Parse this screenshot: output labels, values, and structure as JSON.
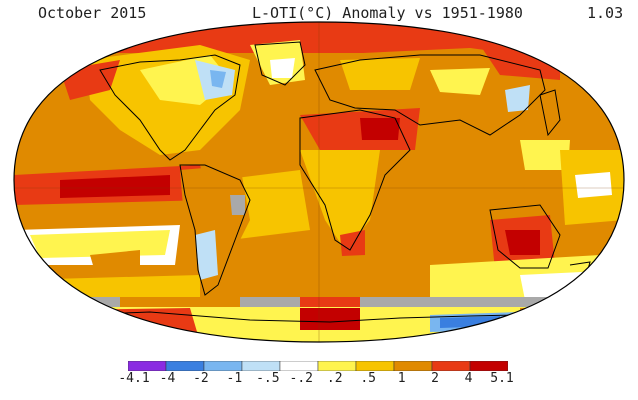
{
  "header": {
    "left": "October 2015",
    "center": "L-OTI(°C) Anomaly vs 1951-1980",
    "right": "1.03"
  },
  "colors": {
    "ocean_frame": "#ffffff",
    "no_data": "#a9a9a9",
    "coastline": "#000000",
    "bins": [
      "#8a2be2",
      "#3a7fe0",
      "#79b6f0",
      "#bfe0f6",
      "#ffffff",
      "#fff44f",
      "#f7c400",
      "#e08a00",
      "#e83a14",
      "#c30000"
    ]
  },
  "legend": {
    "ticks": [
      "-4.1",
      "-4",
      "-2",
      "-1",
      "-.5",
      "-.2",
      ".2",
      ".5",
      "1",
      "2",
      "4",
      "5.1"
    ]
  }
}
